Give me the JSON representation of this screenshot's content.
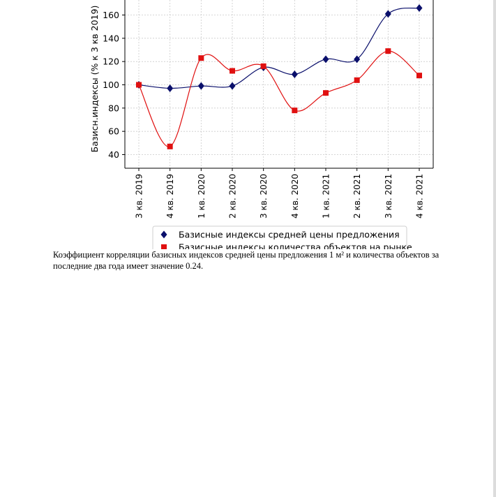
{
  "chart_data": {
    "type": "line",
    "ylabel": "Базисн.индексы (% к 3 кв 2019)",
    "ylim": [
      28,
      180
    ],
    "y_ticks": [
      40,
      60,
      80,
      100,
      120,
      140,
      160
    ],
    "grid": true,
    "categories": [
      "3 кв. 2019",
      "4 кв. 2019",
      "1 кв. 2020",
      "2 кв. 2020",
      "3 кв. 2020",
      "4 кв. 2020",
      "1 кв. 2021",
      "2 кв. 2021",
      "3 кв. 2021",
      "4 кв. 2021"
    ],
    "series": [
      {
        "name": "Базисные индексы средней цены предложения",
        "color": "#0a0f6b",
        "marker": "diamond",
        "values": [
          100,
          97,
          99,
          99,
          115,
          109,
          122,
          122,
          161,
          166
        ]
      },
      {
        "name": "Базисные индексы количества объектов на рынке",
        "color": "#e01010",
        "marker": "square",
        "values": [
          100,
          47,
          123,
          112,
          116,
          78,
          93,
          104,
          129,
          108
        ]
      }
    ],
    "legend_position": "bottom"
  },
  "text": {
    "paragraph": "Коэффициент корреляции базисных индексов средней цены предложения 1 м² и количества объектов за последние два года имеет значение 0.24."
  }
}
